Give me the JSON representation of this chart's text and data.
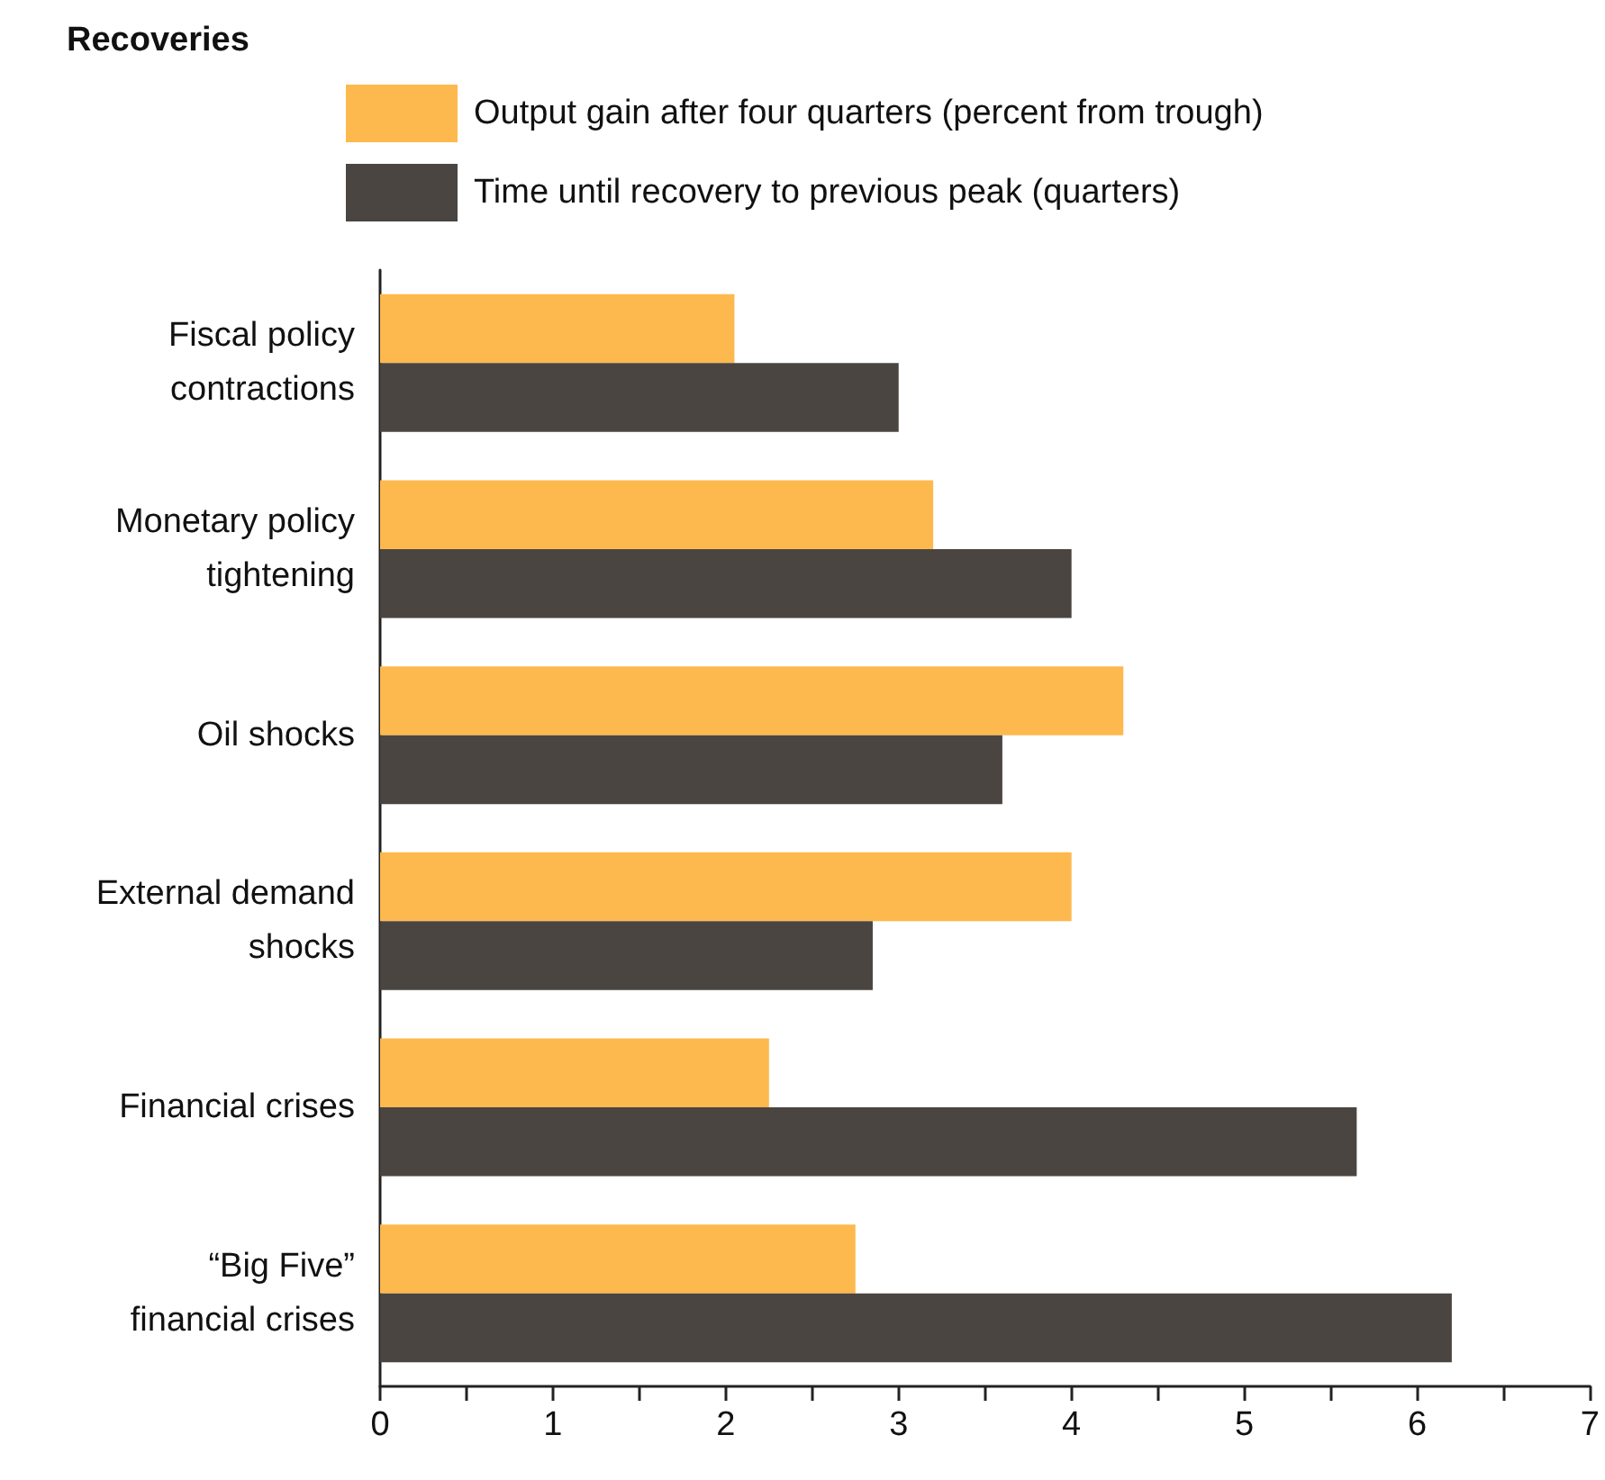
{
  "chart_data": {
    "type": "bar",
    "orientation": "horizontal",
    "title": "Recoveries",
    "categories": [
      "Fiscal policy\ncontractions",
      "Monetary policy\ntightening",
      "Oil shocks",
      "External demand\nshocks",
      "Financial crises",
      "“Big Five”\nfinancial crises"
    ],
    "series": [
      {
        "name": "Output gain after four quarters (percent from trough)",
        "color": "#fdb94e",
        "values": [
          2.05,
          3.2,
          4.3,
          4.0,
          2.25,
          2.75
        ]
      },
      {
        "name": "Time until recovery to previous peak (quarters)",
        "color": "#4a4540",
        "values": [
          3.0,
          4.0,
          3.6,
          2.85,
          5.65,
          6.2
        ]
      }
    ],
    "xlim": [
      0,
      7
    ],
    "xticks": [
      0,
      {
        "value": 0.5,
        "label": null
      },
      1,
      {
        "value": 1.5,
        "label": null
      },
      2,
      {
        "value": 2.5,
        "label": null
      },
      3,
      {
        "value": 3.5,
        "label": null
      },
      4,
      {
        "value": 4.5,
        "label": null
      },
      5,
      {
        "value": 5.5,
        "label": null
      },
      6,
      {
        "value": 6.5,
        "label": null
      },
      7
    ],
    "grid": false,
    "legend": "top left"
  }
}
